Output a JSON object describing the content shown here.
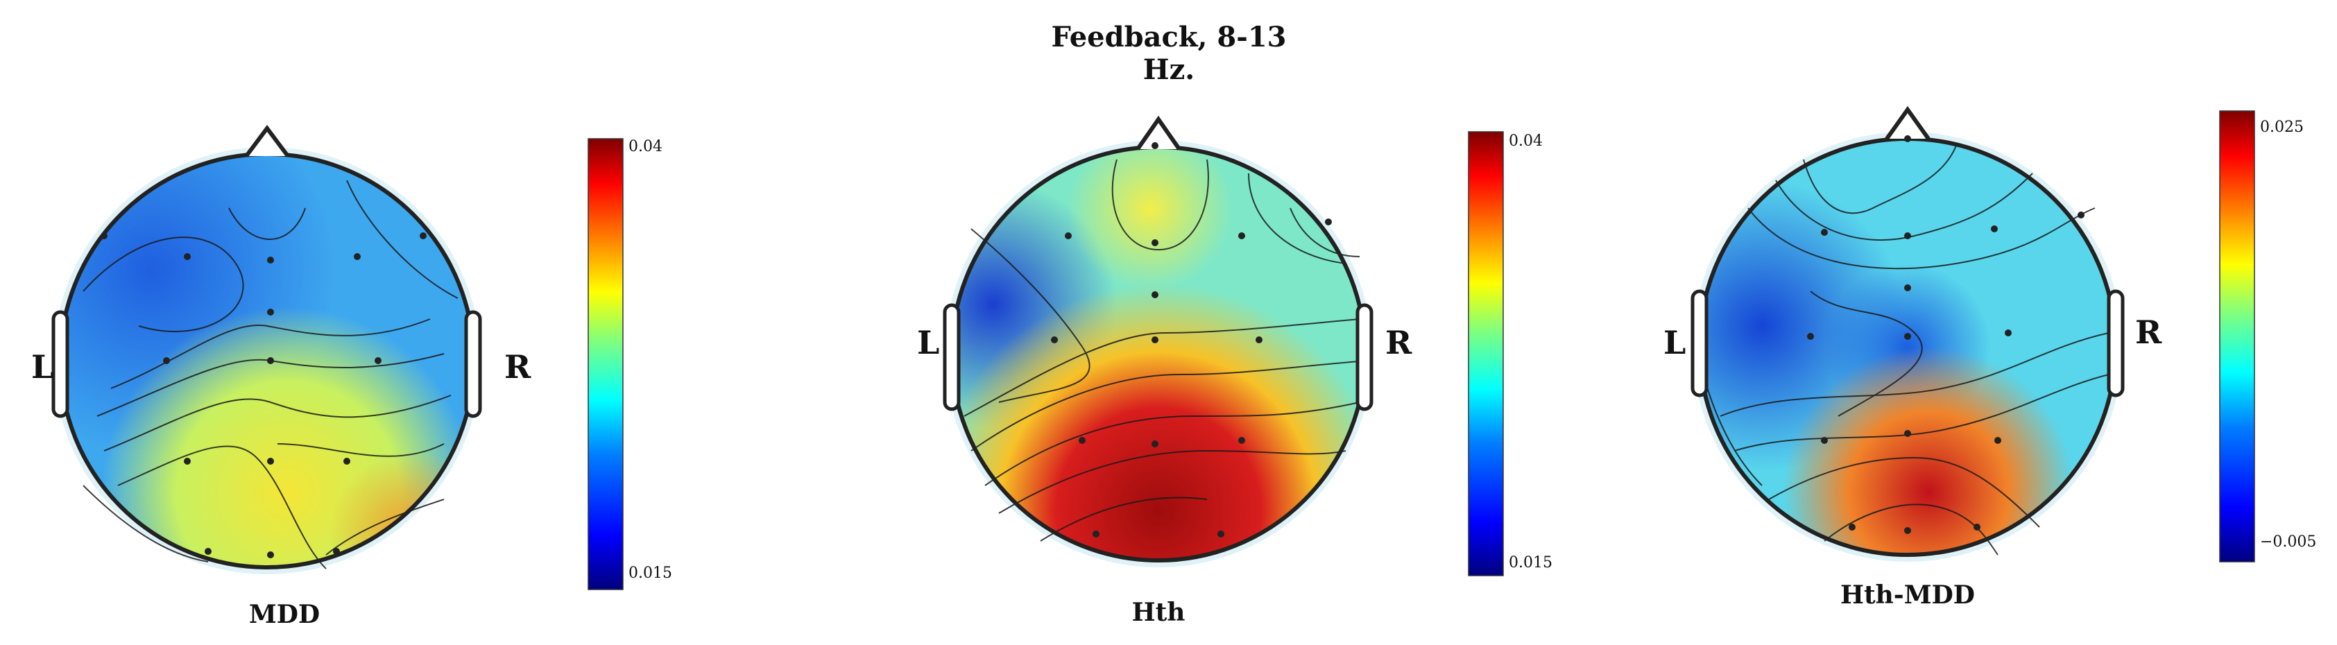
{
  "figure": {
    "title": "Feedback, 8-13 Hz."
  },
  "panels": [
    {
      "name": "MDD",
      "left_label": "L",
      "right_label": "R",
      "colorbar": {
        "max_label": "0.04",
        "min_label": "0.015"
      }
    },
    {
      "name": "Hth",
      "left_label": "L",
      "right_label": "R",
      "colorbar": {
        "max_label": "0.04",
        "min_label": "0.015"
      }
    },
    {
      "name": "Hth-MDD",
      "left_label": "L",
      "right_label": "R",
      "colorbar": {
        "max_label": "0.025",
        "min_label": "−0.005"
      }
    }
  ],
  "colormap": [
    "#00007f",
    "#0000ff",
    "#007fff",
    "#00ffff",
    "#7fff7f",
    "#ffff00",
    "#ff7f00",
    "#ff0000",
    "#7f0000"
  ]
}
